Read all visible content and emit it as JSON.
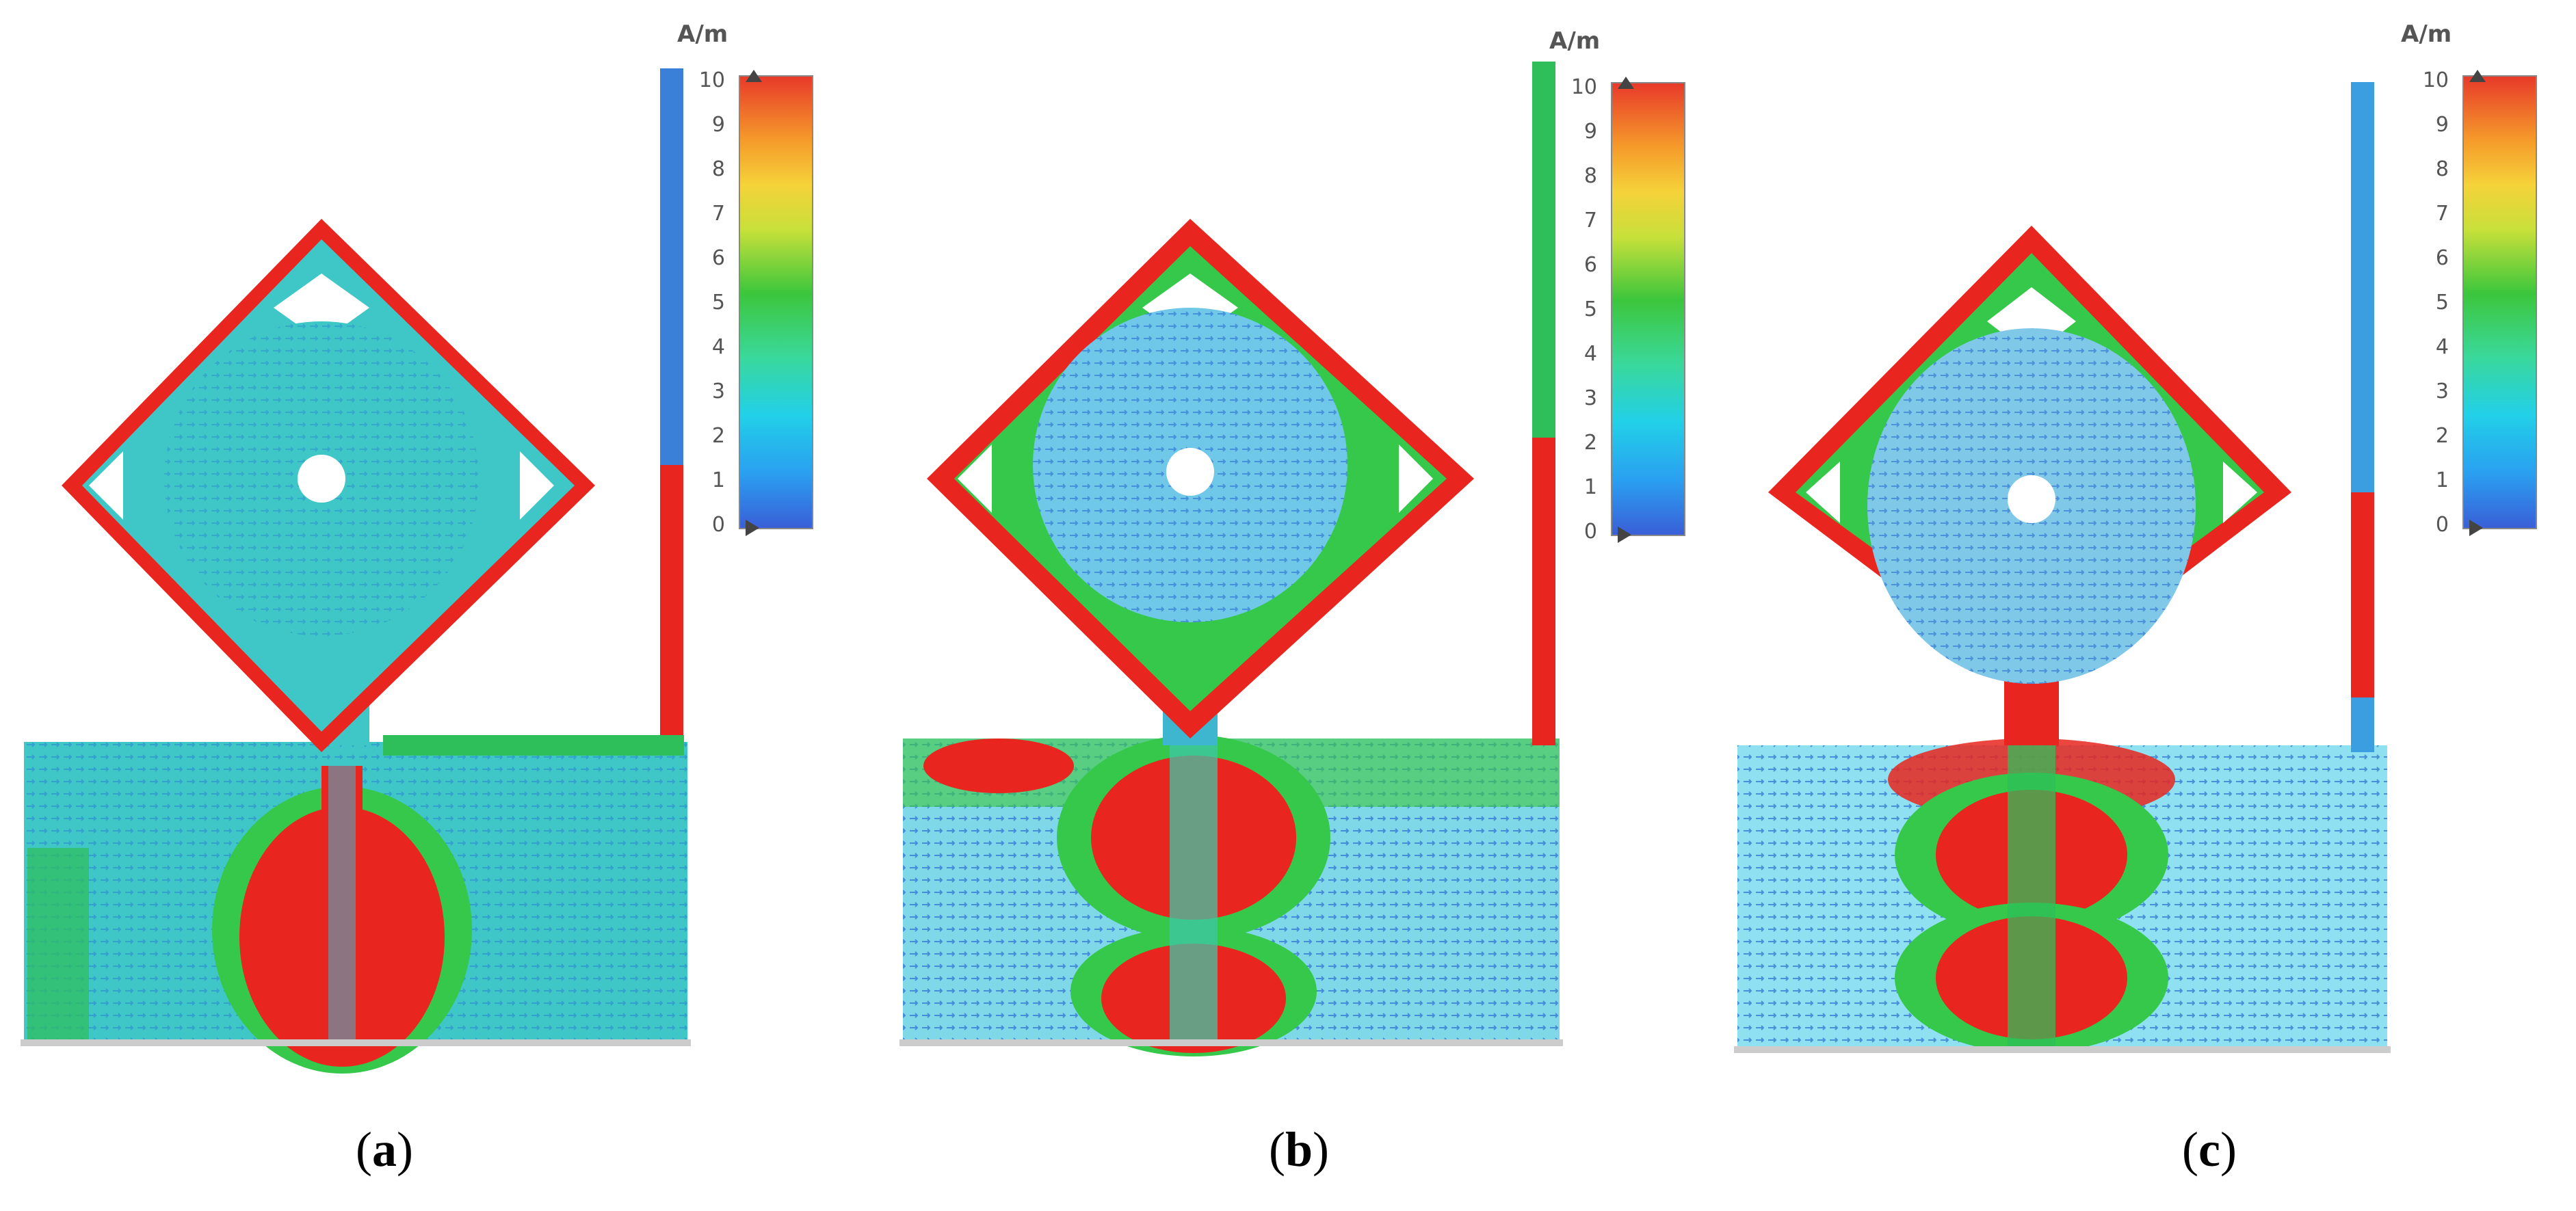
{
  "colors": {
    "red": "#e8261f",
    "orange": "#f5a23a",
    "yellow": "#e8e23a",
    "green": "#35c24a",
    "cyan": "#36c9d8",
    "blue": "#3a6ee0",
    "white": "#ffffff"
  },
  "colorbar": {
    "unit": "A/m",
    "ticks": [
      "0",
      "1",
      "2",
      "3",
      "4",
      "5",
      "6",
      "7",
      "8",
      "9",
      "10"
    ]
  },
  "panels": [
    {
      "label_open": "(",
      "label_letter": "a",
      "label_close": ")"
    },
    {
      "label_open": "(",
      "label_letter": "b",
      "label_close": ")"
    },
    {
      "label_open": "(",
      "label_letter": "c",
      "label_close": ")"
    }
  ]
}
